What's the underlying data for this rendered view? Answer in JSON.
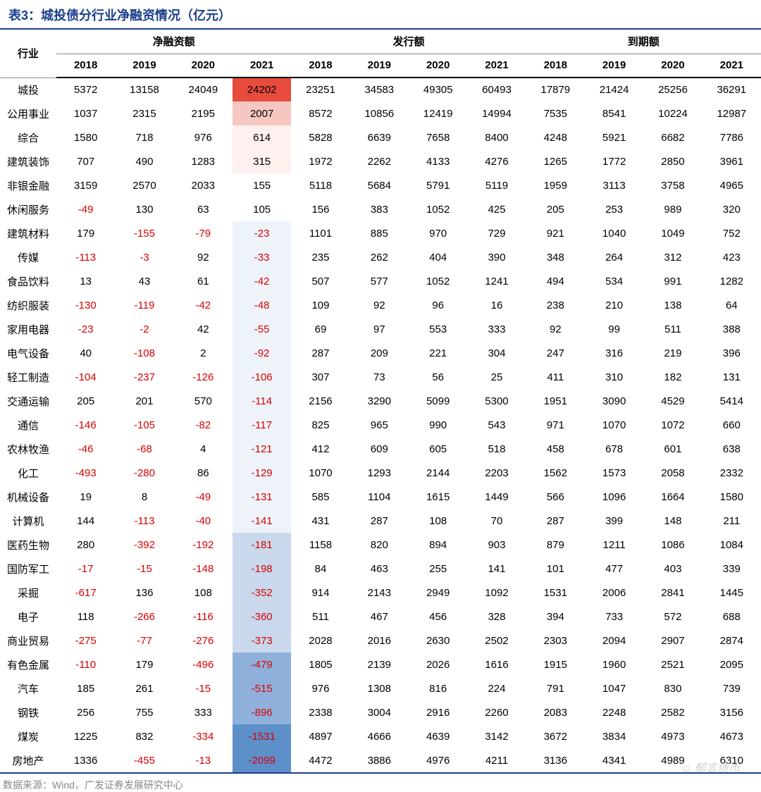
{
  "title": "表3：城投债分行业净融资情况（亿元）",
  "source": "数据来源：Wind，广发证券发展研究中心",
  "watermark": "☺ 郁言债市",
  "colors": {
    "title": "#1a3e8c",
    "negative": "#d90000",
    "text": "#000000",
    "source": "#888888",
    "heat_pos_max": "#e84c3d",
    "heat_pos_mid": "#f6c7c0",
    "heat_pos_low": "#fdf0ee",
    "heat_neutral": "#ffffff",
    "heat_neg_low": "#eef3f9",
    "heat_neg_mid": "#c9d8ec",
    "heat_neg_high": "#8fb0da",
    "heat_neg_max": "#5d8fc9"
  },
  "header": {
    "industry": "行业",
    "groups": [
      "净融资额",
      "发行额",
      "到期额"
    ],
    "years": [
      "2018",
      "2019",
      "2020",
      "2021"
    ]
  },
  "heatmap_range": {
    "min": -2099,
    "max": 24202
  },
  "rows": [
    {
      "ind": "城投",
      "net": [
        5372,
        13158,
        24049,
        24202
      ],
      "issue": [
        23251,
        34583,
        49305,
        60493
      ],
      "mature": [
        17879,
        21424,
        25256,
        36291
      ]
    },
    {
      "ind": "公用事业",
      "net": [
        1037,
        2315,
        2195,
        2007
      ],
      "issue": [
        8572,
        10856,
        12419,
        14994
      ],
      "mature": [
        7535,
        8541,
        10224,
        12987
      ]
    },
    {
      "ind": "综合",
      "net": [
        1580,
        718,
        976,
        614
      ],
      "issue": [
        5828,
        6639,
        7658,
        8400
      ],
      "mature": [
        4248,
        5921,
        6682,
        7786
      ]
    },
    {
      "ind": "建筑装饰",
      "net": [
        707,
        490,
        1283,
        315
      ],
      "issue": [
        1972,
        2262,
        4133,
        4276
      ],
      "mature": [
        1265,
        1772,
        2850,
        3961
      ]
    },
    {
      "ind": "非银金融",
      "net": [
        3159,
        2570,
        2033,
        155
      ],
      "issue": [
        5118,
        5684,
        5791,
        5119
      ],
      "mature": [
        1959,
        3113,
        3758,
        4965
      ]
    },
    {
      "ind": "休闲服务",
      "net": [
        -49,
        130,
        63,
        105
      ],
      "issue": [
        156,
        383,
        1052,
        425
      ],
      "mature": [
        205,
        253,
        989,
        320
      ]
    },
    {
      "ind": "建筑材料",
      "net": [
        179,
        -155,
        -79,
        -23
      ],
      "issue": [
        1101,
        885,
        970,
        729
      ],
      "mature": [
        921,
        1040,
        1049,
        752
      ]
    },
    {
      "ind": "传媒",
      "net": [
        -113,
        -3,
        92,
        -33
      ],
      "issue": [
        235,
        262,
        404,
        390
      ],
      "mature": [
        348,
        264,
        312,
        423
      ]
    },
    {
      "ind": "食品饮料",
      "net": [
        13,
        43,
        61,
        -42
      ],
      "issue": [
        507,
        577,
        1052,
        1241
      ],
      "mature": [
        494,
        534,
        991,
        1282
      ]
    },
    {
      "ind": "纺织服装",
      "net": [
        -130,
        -119,
        -42,
        -48
      ],
      "issue": [
        109,
        92,
        96,
        16
      ],
      "mature": [
        238,
        210,
        138,
        64
      ]
    },
    {
      "ind": "家用电器",
      "net": [
        -23,
        -2,
        42,
        -55
      ],
      "issue": [
        69,
        97,
        553,
        333
      ],
      "mature": [
        92,
        99,
        511,
        388
      ]
    },
    {
      "ind": "电气设备",
      "net": [
        40,
        -108,
        2,
        -92
      ],
      "issue": [
        287,
        209,
        221,
        304
      ],
      "mature": [
        247,
        316,
        219,
        396
      ]
    },
    {
      "ind": "轻工制造",
      "net": [
        -104,
        -237,
        -126,
        -106
      ],
      "issue": [
        307,
        73,
        56,
        25
      ],
      "mature": [
        411,
        310,
        182,
        131
      ]
    },
    {
      "ind": "交通运输",
      "net": [
        205,
        201,
        570,
        -114
      ],
      "issue": [
        2156,
        3290,
        5099,
        5300
      ],
      "mature": [
        1951,
        3090,
        4529,
        5414
      ]
    },
    {
      "ind": "通信",
      "net": [
        -146,
        -105,
        -82,
        -117
      ],
      "issue": [
        825,
        965,
        990,
        543
      ],
      "mature": [
        971,
        1070,
        1072,
        660
      ]
    },
    {
      "ind": "农林牧渔",
      "net": [
        -46,
        -68,
        4,
        -121
      ],
      "issue": [
        412,
        609,
        605,
        518
      ],
      "mature": [
        458,
        678,
        601,
        638
      ]
    },
    {
      "ind": "化工",
      "net": [
        -493,
        -280,
        86,
        -129
      ],
      "issue": [
        1070,
        1293,
        2144,
        2203
      ],
      "mature": [
        1562,
        1573,
        2058,
        2332
      ]
    },
    {
      "ind": "机械设备",
      "net": [
        19,
        8,
        -49,
        -131
      ],
      "issue": [
        585,
        1104,
        1615,
        1449
      ],
      "mature": [
        566,
        1096,
        1664,
        1580
      ]
    },
    {
      "ind": "计算机",
      "net": [
        144,
        -113,
        -40,
        -141
      ],
      "issue": [
        431,
        287,
        108,
        70
      ],
      "mature": [
        287,
        399,
        148,
        211
      ]
    },
    {
      "ind": "医药生物",
      "net": [
        280,
        -392,
        -192,
        -181
      ],
      "issue": [
        1158,
        820,
        894,
        903
      ],
      "mature": [
        879,
        1211,
        1086,
        1084
      ]
    },
    {
      "ind": "国防军工",
      "net": [
        -17,
        -15,
        -148,
        -198
      ],
      "issue": [
        84,
        463,
        255,
        141
      ],
      "mature": [
        101,
        477,
        403,
        339
      ]
    },
    {
      "ind": "采掘",
      "net": [
        -617,
        136,
        108,
        -352
      ],
      "issue": [
        914,
        2143,
        2949,
        1092
      ],
      "mature": [
        1531,
        2006,
        2841,
        1445
      ]
    },
    {
      "ind": "电子",
      "net": [
        118,
        -266,
        -116,
        -360
      ],
      "issue": [
        511,
        467,
        456,
        328
      ],
      "mature": [
        394,
        733,
        572,
        688
      ]
    },
    {
      "ind": "商业贸易",
      "net": [
        -275,
        -77,
        -276,
        -373
      ],
      "issue": [
        2028,
        2016,
        2630,
        2502
      ],
      "mature": [
        2303,
        2094,
        2907,
        2874
      ]
    },
    {
      "ind": "有色金属",
      "net": [
        -110,
        179,
        -496,
        -479
      ],
      "issue": [
        1805,
        2139,
        2026,
        1616
      ],
      "mature": [
        1915,
        1960,
        2521,
        2095
      ]
    },
    {
      "ind": "汽车",
      "net": [
        185,
        261,
        -15,
        -515
      ],
      "issue": [
        976,
        1308,
        816,
        224
      ],
      "mature": [
        791,
        1047,
        830,
        739
      ]
    },
    {
      "ind": "钢铁",
      "net": [
        256,
        755,
        333,
        -896
      ],
      "issue": [
        2338,
        3004,
        2916,
        2260
      ],
      "mature": [
        2083,
        2248,
        2582,
        3156
      ]
    },
    {
      "ind": "煤炭",
      "net": [
        1225,
        832,
        -334,
        -1531
      ],
      "issue": [
        4897,
        4666,
        4639,
        3142
      ],
      "mature": [
        3672,
        3834,
        4973,
        4673
      ]
    },
    {
      "ind": "房地产",
      "net": [
        1336,
        -455,
        -13,
        -2099
      ],
      "issue": [
        4472,
        3886,
        4976,
        4211
      ],
      "mature": [
        3136,
        4341,
        4989,
        6310
      ]
    }
  ]
}
